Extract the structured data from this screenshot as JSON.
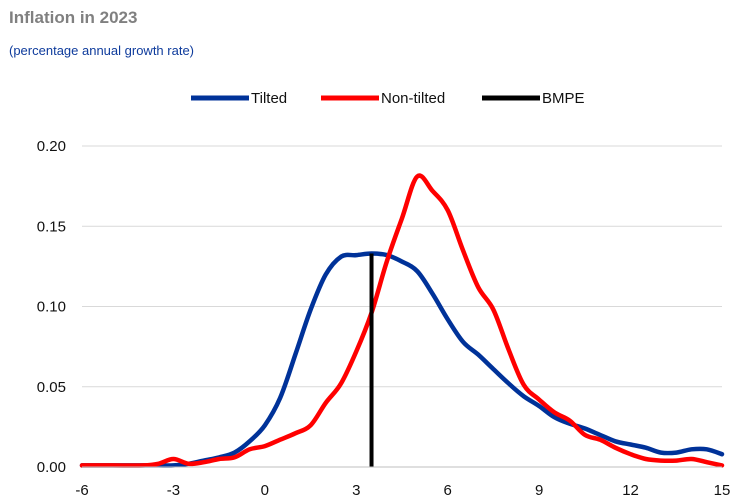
{
  "title": "Inflation in 2023",
  "subtitle": "(percentage annual growth rate)",
  "chart_data": {
    "type": "line",
    "xlim": [
      -6,
      15
    ],
    "ylim": [
      0,
      0.2
    ],
    "xticks": [
      -6,
      -3,
      0,
      3,
      6,
      9,
      12,
      15
    ],
    "xtick_labels": [
      "-6",
      "-3",
      "0",
      "3",
      "6",
      "9",
      "12",
      "15"
    ],
    "yticks": [
      0,
      0.05,
      0.1,
      0.15,
      0.2
    ],
    "ytick_labels": [
      "0.00",
      "0.05",
      "0.10",
      "0.15",
      "0.20"
    ],
    "grid": "horizontal",
    "legend_position": "top-center",
    "series": [
      {
        "name": "Tilted",
        "color": "#003299",
        "x": [
          -6,
          -5,
          -4,
          -3.5,
          -3,
          -2.5,
          -2,
          -1.5,
          -1,
          -0.5,
          0,
          0.5,
          1,
          1.5,
          2,
          2.5,
          3,
          3.5,
          4,
          4.5,
          5,
          5.5,
          6,
          6.5,
          7,
          7.5,
          8,
          8.5,
          9,
          9.5,
          10,
          10.5,
          11,
          11.5,
          12,
          12.5,
          13,
          13.5,
          14,
          14.5,
          15
        ],
        "y": [
          0.001,
          0.001,
          0.001,
          0.001,
          0.001,
          0.002,
          0.004,
          0.006,
          0.009,
          0.016,
          0.026,
          0.043,
          0.07,
          0.098,
          0.12,
          0.131,
          0.132,
          0.133,
          0.132,
          0.128,
          0.122,
          0.108,
          0.092,
          0.078,
          0.07,
          0.061,
          0.052,
          0.044,
          0.038,
          0.031,
          0.027,
          0.024,
          0.02,
          0.016,
          0.014,
          0.012,
          0.009,
          0.009,
          0.011,
          0.011,
          0.008
        ]
      },
      {
        "name": "Non-tilted",
        "color": "#ff0000",
        "x": [
          -6,
          -5,
          -4,
          -3.5,
          -3,
          -2.5,
          -2,
          -1.5,
          -1,
          -0.5,
          0,
          0.5,
          1,
          1.5,
          2,
          2.5,
          3,
          3.5,
          4,
          4.5,
          5,
          5.5,
          6,
          6.5,
          7,
          7.5,
          8,
          8.5,
          9,
          9.5,
          10,
          10.5,
          11,
          11.5,
          12,
          12.5,
          13,
          13.5,
          14,
          14.5,
          15
        ],
        "y": [
          0.001,
          0.001,
          0.001,
          0.002,
          0.005,
          0.002,
          0.003,
          0.005,
          0.006,
          0.011,
          0.013,
          0.017,
          0.021,
          0.026,
          0.04,
          0.052,
          0.072,
          0.096,
          0.128,
          0.155,
          0.181,
          0.172,
          0.16,
          0.135,
          0.112,
          0.098,
          0.073,
          0.051,
          0.042,
          0.034,
          0.029,
          0.02,
          0.017,
          0.012,
          0.008,
          0.005,
          0.004,
          0.004,
          0.005,
          0.003,
          0.001
        ]
      },
      {
        "name": "BMPE",
        "color": "#000000",
        "type": "vertical-line",
        "x": [
          3.5,
          3.5
        ],
        "y": [
          0,
          0.133
        ]
      }
    ]
  }
}
